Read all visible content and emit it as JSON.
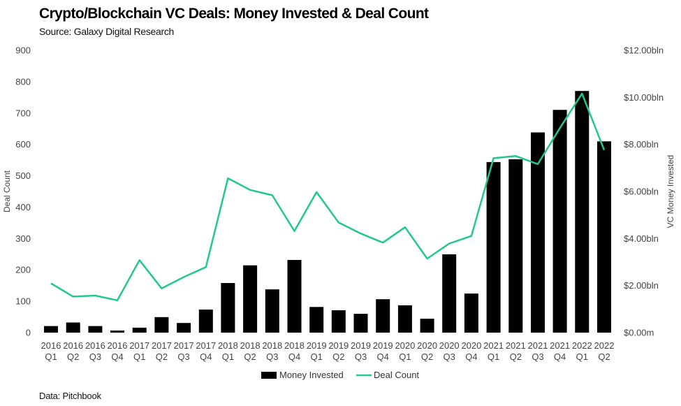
{
  "chart_data": {
    "type": "bar",
    "title": "Crypto/Blockchain VC Deals: Money Invested & Deal Count",
    "subtitle": "Source: Galaxy Digital Research",
    "footnote": "Data: Pitchbook",
    "categories": [
      [
        "2016",
        "Q1"
      ],
      [
        "2016",
        "Q2"
      ],
      [
        "2016",
        "Q3"
      ],
      [
        "2016",
        "Q4"
      ],
      [
        "2017",
        "Q1"
      ],
      [
        "2017",
        "Q2"
      ],
      [
        "2017",
        "Q3"
      ],
      [
        "2017",
        "Q4"
      ],
      [
        "2018",
        "Q1"
      ],
      [
        "2018",
        "Q2"
      ],
      [
        "2018",
        "Q3"
      ],
      [
        "2018",
        "Q4"
      ],
      [
        "2019",
        "Q1"
      ],
      [
        "2019",
        "Q2"
      ],
      [
        "2019",
        "Q3"
      ],
      [
        "2019",
        "Q4"
      ],
      [
        "2020",
        "Q1"
      ],
      [
        "2020",
        "Q2"
      ],
      [
        "2020",
        "Q3"
      ],
      [
        "2020",
        "Q4"
      ],
      [
        "2021",
        "Q1"
      ],
      [
        "2021",
        "Q2"
      ],
      [
        "2021",
        "Q3"
      ],
      [
        "2021",
        "Q4"
      ],
      [
        "2022",
        "Q1"
      ],
      [
        "2022",
        "Q2"
      ]
    ],
    "series": [
      {
        "name": "Money Invested",
        "type": "bar",
        "axis": "right",
        "unit": "bln USD",
        "color": "#000000",
        "values": [
          0.28,
          0.43,
          0.28,
          0.09,
          0.21,
          0.66,
          0.41,
          0.98,
          2.11,
          2.86,
          1.84,
          3.09,
          1.09,
          0.95,
          0.8,
          1.42,
          1.16,
          0.59,
          3.33,
          1.66,
          7.25,
          7.37,
          8.51,
          9.47,
          10.27,
          8.13
        ]
      },
      {
        "name": "Deal Count",
        "type": "line",
        "axis": "left",
        "color": "#20c98b",
        "values": [
          157,
          115,
          118,
          103,
          231,
          141,
          177,
          209,
          492,
          455,
          438,
          324,
          448,
          351,
          316,
          287,
          336,
          236,
          284,
          308,
          556,
          563,
          537,
          652,
          762,
          582
        ]
      }
    ],
    "y_left": {
      "label": "Deal Count",
      "range": [
        0,
        900
      ],
      "ticks": [
        "0",
        "100",
        "200",
        "300",
        "400",
        "500",
        "600",
        "700",
        "800",
        "900"
      ]
    },
    "y_right": {
      "label": "VC Money Invested",
      "range": [
        0,
        12
      ],
      "ticks": [
        "$0.00m",
        "$2.00bln",
        "$4.00bln",
        "$6.00bln",
        "$8.00bln",
        "$10.00bln",
        "$12.00bln"
      ]
    },
    "grid": false,
    "legend": "bottom-center"
  }
}
